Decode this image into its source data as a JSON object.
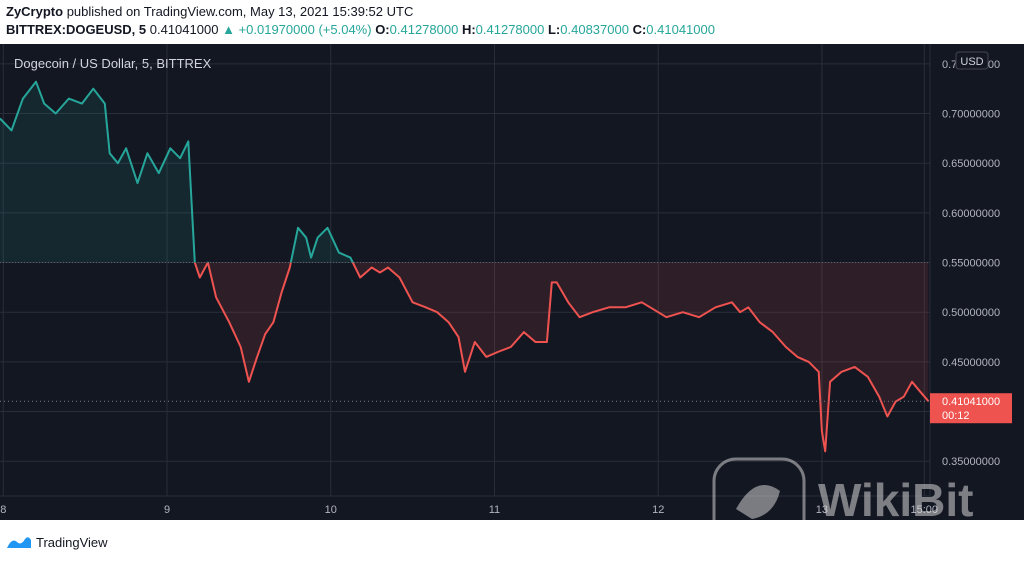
{
  "header": {
    "publisher": "ZyCrypto",
    "published_text": "published on TradingView.com, May 13, 2021 15:39:52 UTC",
    "symbol": "BITTREX:DOGEUSD, 5",
    "last": "0.41041000",
    "change": "+0.01970000 (+5.04%)",
    "o_label": "O:",
    "o_value": "0.41278000",
    "h_label": "H:",
    "h_value": "0.41278000",
    "l_label": "L:",
    "l_value": "0.40837000",
    "c_label": "C:",
    "c_value": "0.41041000"
  },
  "footer": {
    "brand": "TradingView"
  },
  "watermark": {
    "text": "WikiBit"
  },
  "colors": {
    "bg": "#131722",
    "up": "#26a69a",
    "down": "#ef5350",
    "grid": "#2a2e39",
    "text": "#b2b5be"
  },
  "chart_data": {
    "type": "area",
    "title": "Dogecoin / US Dollar, 5, BITTREX",
    "currency": "USD",
    "baseline": 0.55,
    "last_price": 0.41041,
    "last_label": "0.41041000",
    "countdown": "00:12",
    "ylim": [
      0.315,
      0.77
    ],
    "y_ticks": [
      0.35,
      0.4,
      0.45,
      0.5,
      0.55,
      0.6,
      0.65,
      0.7,
      0.75
    ],
    "y_tick_labels": [
      "0.35000000",
      "0.40000000",
      "0.45000000",
      "0.50000000",
      "0.55000000",
      "0.60000000",
      "0.65000000",
      "0.70000000",
      "0.75000000"
    ],
    "xlim": [
      7.98,
      13.66
    ],
    "x_ticks": [
      8,
      9,
      10,
      11,
      12,
      13,
      13.625
    ],
    "x_tick_labels": [
      "8",
      "9",
      "10",
      "11",
      "12",
      "13",
      "15:00"
    ],
    "x": [
      7.98,
      8.05,
      8.12,
      8.2,
      8.25,
      8.32,
      8.4,
      8.48,
      8.55,
      8.62,
      8.65,
      8.7,
      8.75,
      8.82,
      8.88,
      8.95,
      9.02,
      9.08,
      9.13,
      9.15,
      9.17,
      9.2,
      9.25,
      9.3,
      9.38,
      9.45,
      9.5,
      9.55,
      9.6,
      9.65,
      9.7,
      9.75,
      9.8,
      9.85,
      9.88,
      9.92,
      9.98,
      10.05,
      10.12,
      10.18,
      10.25,
      10.3,
      10.35,
      10.42,
      10.5,
      10.58,
      10.65,
      10.72,
      10.78,
      10.82,
      10.88,
      10.95,
      11.02,
      11.1,
      11.18,
      11.25,
      11.32,
      11.35,
      11.38,
      11.45,
      11.52,
      11.6,
      11.7,
      11.8,
      11.9,
      12.0,
      12.05,
      12.15,
      12.25,
      12.35,
      12.45,
      12.5,
      12.55,
      12.62,
      12.7,
      12.78,
      12.85,
      12.92,
      12.98,
      13.0,
      13.02,
      13.05,
      13.12,
      13.2,
      13.28,
      13.35,
      13.4,
      13.45,
      13.5,
      13.55,
      13.6,
      13.65
    ],
    "y": [
      0.695,
      0.683,
      0.715,
      0.732,
      0.71,
      0.7,
      0.715,
      0.71,
      0.725,
      0.71,
      0.66,
      0.65,
      0.665,
      0.63,
      0.66,
      0.64,
      0.665,
      0.655,
      0.672,
      0.61,
      0.55,
      0.535,
      0.55,
      0.515,
      0.49,
      0.465,
      0.43,
      0.455,
      0.478,
      0.49,
      0.52,
      0.545,
      0.585,
      0.575,
      0.555,
      0.575,
      0.585,
      0.56,
      0.555,
      0.535,
      0.545,
      0.54,
      0.545,
      0.535,
      0.51,
      0.505,
      0.5,
      0.49,
      0.475,
      0.44,
      0.47,
      0.455,
      0.46,
      0.465,
      0.48,
      0.47,
      0.47,
      0.53,
      0.53,
      0.51,
      0.495,
      0.5,
      0.505,
      0.505,
      0.51,
      0.5,
      0.495,
      0.5,
      0.495,
      0.505,
      0.51,
      0.5,
      0.505,
      0.49,
      0.48,
      0.465,
      0.455,
      0.45,
      0.44,
      0.38,
      0.36,
      0.43,
      0.44,
      0.445,
      0.435,
      0.415,
      0.395,
      0.41,
      0.415,
      0.43,
      0.42,
      0.41041
    ]
  }
}
